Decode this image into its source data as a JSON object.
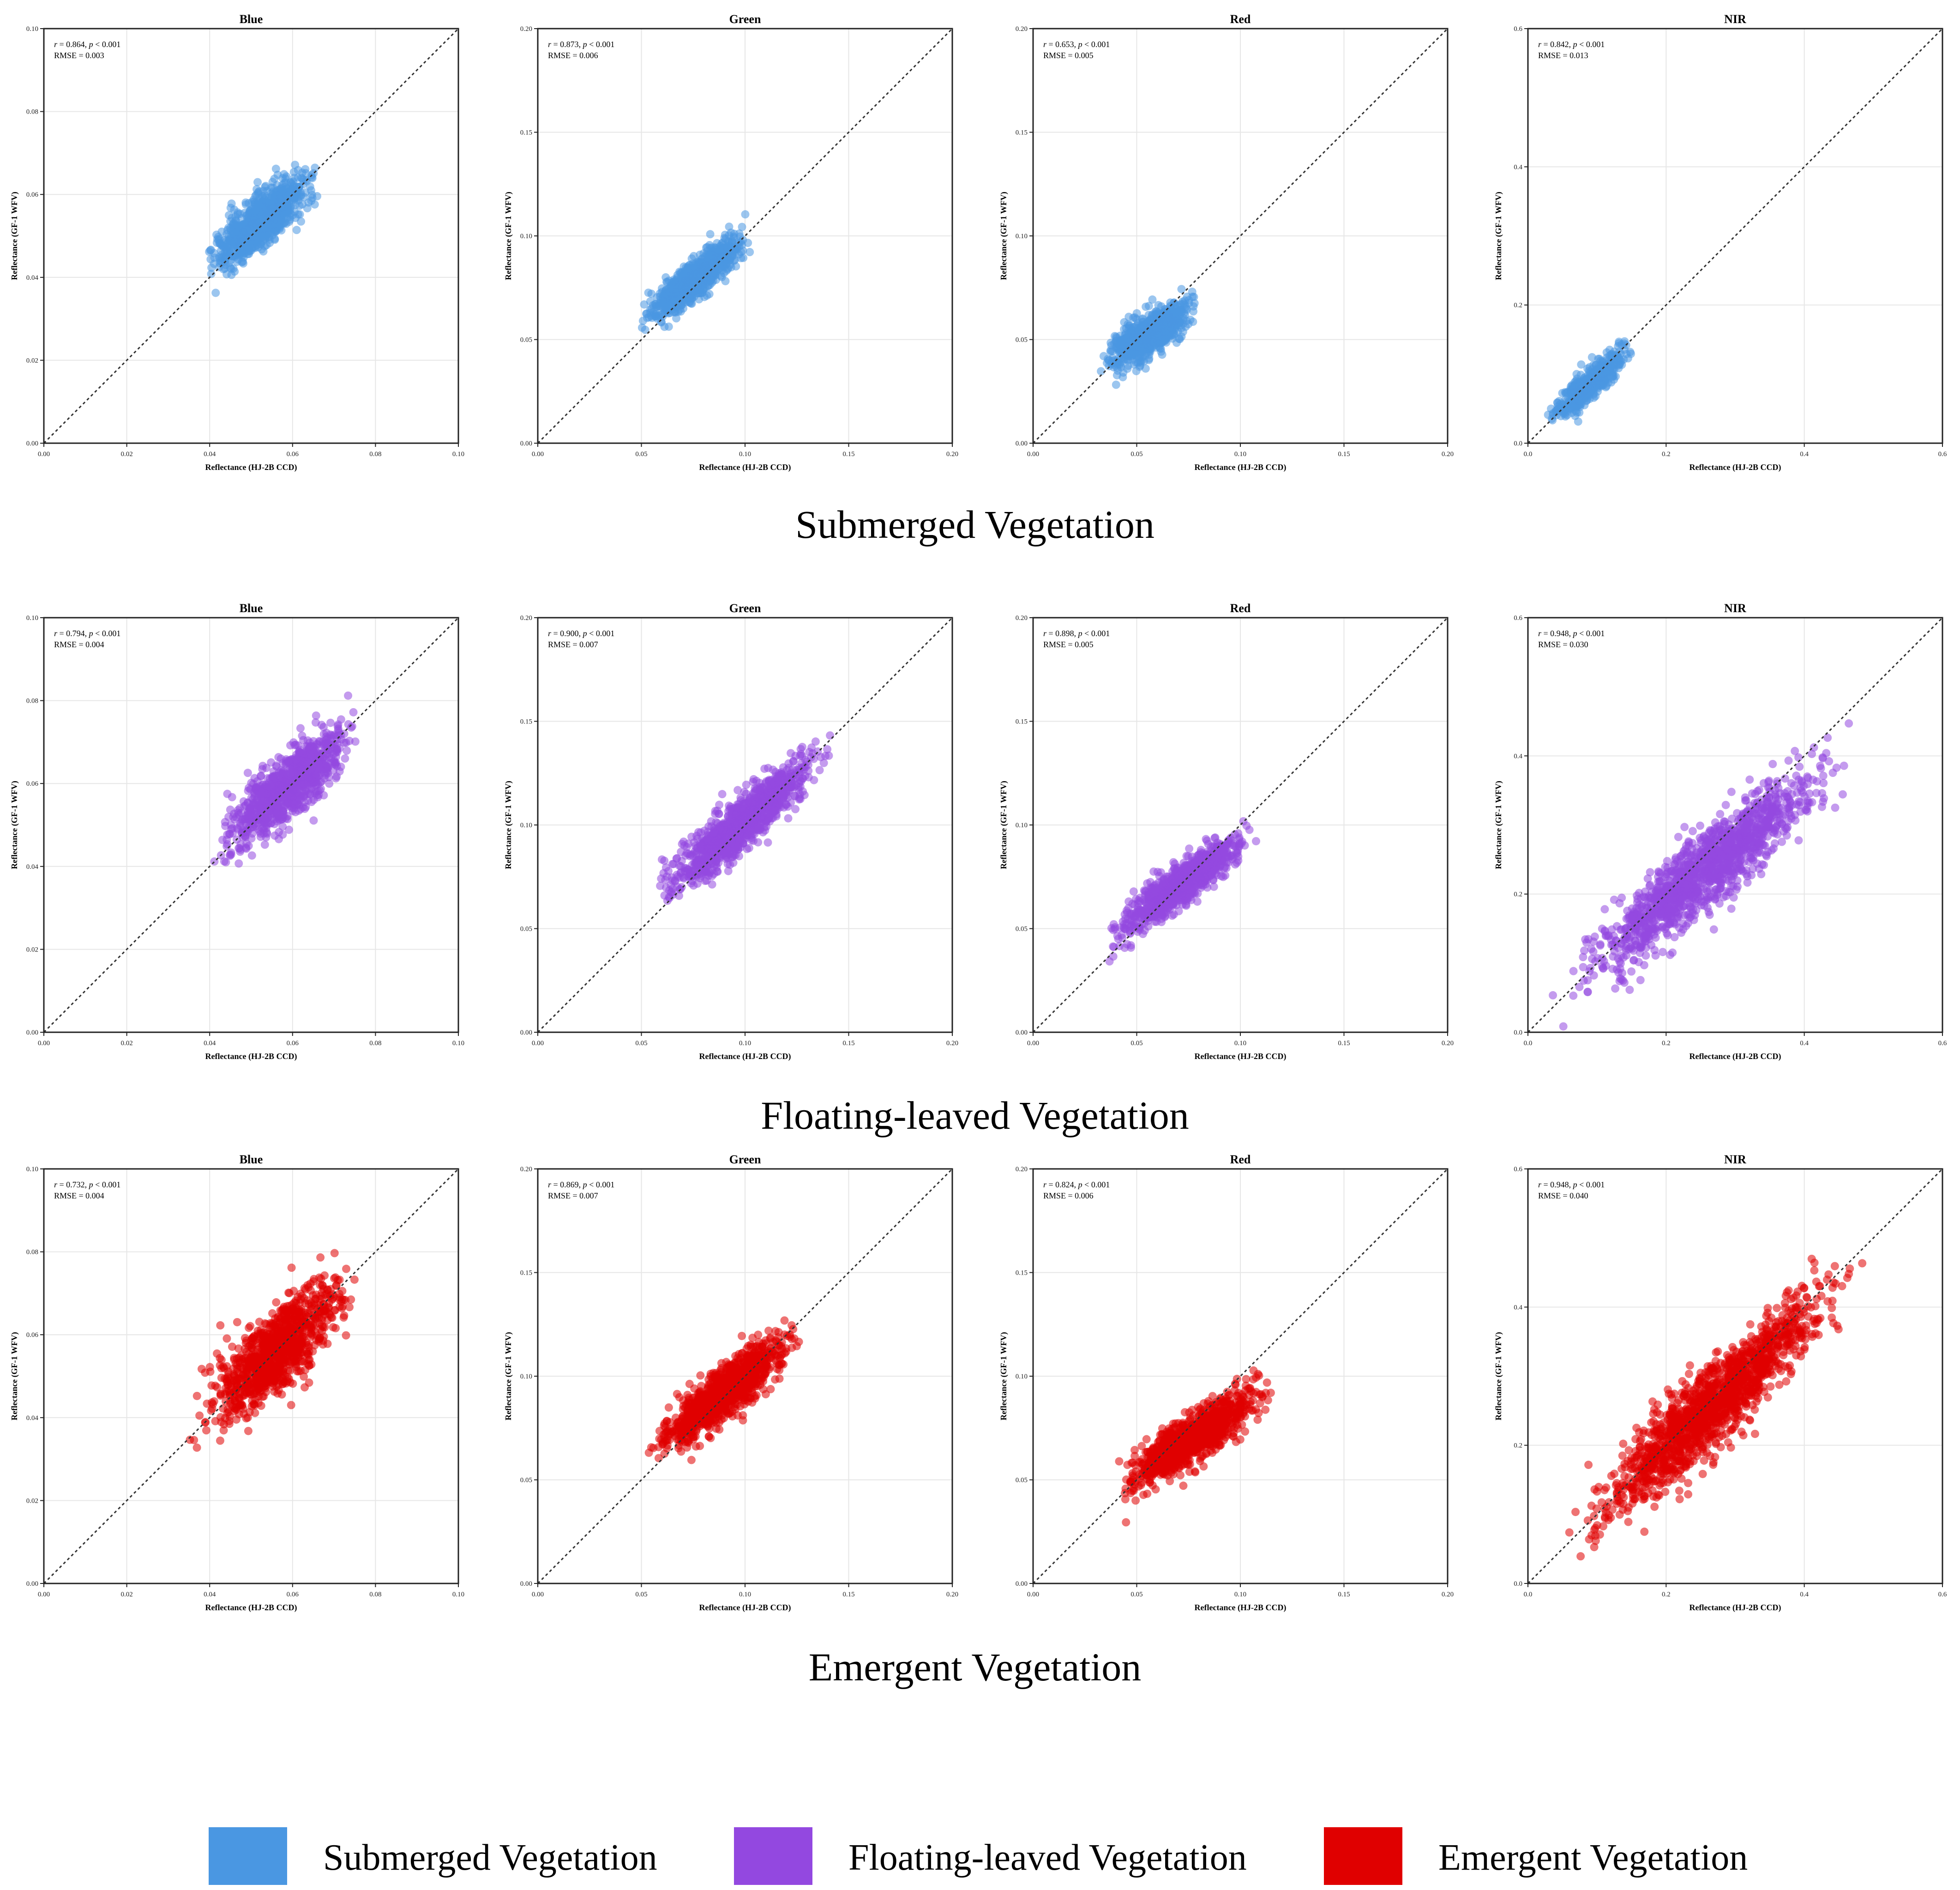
{
  "chart_data": {
    "type": "scatter",
    "xlabel": "Reflectance (HJ-2B CCD)",
    "ylabel": "Reflectance (GF-1 WFV)",
    "colors": {
      "Submerged Vegetation": "#4a97e2",
      "Floating-leaved Vegetation": "#9348e0",
      "Emergent Vegetation": "#e00000"
    },
    "bands": [
      {
        "name": "Blue",
        "lim": [
          0,
          0.1
        ],
        "ticks": [
          "0.00",
          "0.02",
          "0.04",
          "0.06",
          "0.08",
          "0.10"
        ]
      },
      {
        "name": "Green",
        "lim": [
          0,
          0.2
        ],
        "ticks": [
          "0.00",
          "0.05",
          "0.10",
          "0.15",
          "0.20"
        ]
      },
      {
        "name": "Red",
        "lim": [
          0,
          0.2
        ],
        "ticks": [
          "0.00",
          "0.05",
          "0.10",
          "0.15",
          "0.20"
        ]
      },
      {
        "name": "NIR",
        "lim": [
          0,
          0.6
        ],
        "ticks": [
          "0.0",
          "0.2",
          "0.4",
          "0.6"
        ]
      }
    ],
    "groups": [
      {
        "name": "Submerged Vegetation",
        "panels": [
          {
            "band": "Blue",
            "r": "0.864",
            "p": "0.001",
            "rmse": "0.003",
            "cluster": {
              "x": [
                0.037,
                0.068
              ],
              "slope": 0.78,
              "intercept": 0.0125,
              "spread": 0.0032,
              "n": 900
            }
          },
          {
            "band": "Green",
            "r": "0.873",
            "p": "0.001",
            "rmse": "0.006",
            "cluster": {
              "x": [
                0.048,
                0.105
              ],
              "slope": 0.78,
              "intercept": 0.02,
              "spread": 0.0045,
              "n": 900
            }
          },
          {
            "band": "Red",
            "r": "0.653",
            "p": "0.001",
            "rmse": "0.005",
            "cluster": {
              "x": [
                0.03,
                0.082
              ],
              "slope": 0.55,
              "intercept": 0.022,
              "spread": 0.0048,
              "n": 800
            }
          },
          {
            "band": "NIR",
            "r": "0.842",
            "p": "0.001",
            "rmse": "0.013",
            "cluster": {
              "x": [
                0.02,
                0.16
              ],
              "slope": 0.85,
              "intercept": 0.01,
              "spread": 0.012,
              "n": 500
            }
          }
        ]
      },
      {
        "name": "Floating-leaved Vegetation",
        "panels": [
          {
            "band": "Blue",
            "r": "0.794",
            "p": "0.001",
            "rmse": "0.004",
            "cluster": {
              "x": [
                0.04,
                0.078
              ],
              "slope": 0.8,
              "intercept": 0.012,
              "spread": 0.004,
              "n": 1000
            }
          },
          {
            "band": "Green",
            "r": "0.900",
            "p": "0.001",
            "rmse": "0.007",
            "cluster": {
              "x": [
                0.053,
                0.145
              ],
              "slope": 0.8,
              "intercept": 0.022,
              "spread": 0.0065,
              "n": 1100
            }
          },
          {
            "band": "Red",
            "r": "0.898",
            "p": "0.001",
            "rmse": "0.005",
            "cluster": {
              "x": [
                0.032,
                0.112
              ],
              "slope": 0.7,
              "intercept": 0.021,
              "spread": 0.0048,
              "n": 1000
            }
          },
          {
            "band": "NIR",
            "r": "0.948",
            "p": "0.001",
            "rmse": "0.030",
            "cluster": {
              "x": [
                0.03,
                0.48
              ],
              "slope": 0.8,
              "intercept": 0.03,
              "spread": 0.028,
              "n": 1400
            }
          }
        ]
      },
      {
        "name": "Emergent Vegetation",
        "panels": [
          {
            "band": "Blue",
            "r": "0.732",
            "p": "0.001",
            "rmse": "0.004",
            "cluster": {
              "x": [
                0.034,
                0.078
              ],
              "slope": 0.82,
              "intercept": 0.01,
              "spread": 0.005,
              "n": 1000
            }
          },
          {
            "band": "Green",
            "r": "0.869",
            "p": "0.001",
            "rmse": "0.007",
            "cluster": {
              "x": [
                0.05,
                0.13
              ],
              "slope": 0.75,
              "intercept": 0.025,
              "spread": 0.006,
              "n": 1100
            }
          },
          {
            "band": "Red",
            "r": "0.824",
            "p": "0.001",
            "rmse": "0.006",
            "cluster": {
              "x": [
                0.035,
                0.12
              ],
              "slope": 0.62,
              "intercept": 0.022,
              "spread": 0.006,
              "n": 1000
            }
          },
          {
            "band": "NIR",
            "r": "0.948",
            "p": "0.001",
            "rmse": "0.040",
            "cluster": {
              "x": [
                0.04,
                0.5
              ],
              "slope": 0.9,
              "intercept": 0.018,
              "spread": 0.03,
              "n": 1500
            }
          }
        ]
      }
    ],
    "legend": [
      "Submerged Vegetation",
      "Floating-leaved Vegetation",
      "Emergent Vegetation"
    ]
  }
}
